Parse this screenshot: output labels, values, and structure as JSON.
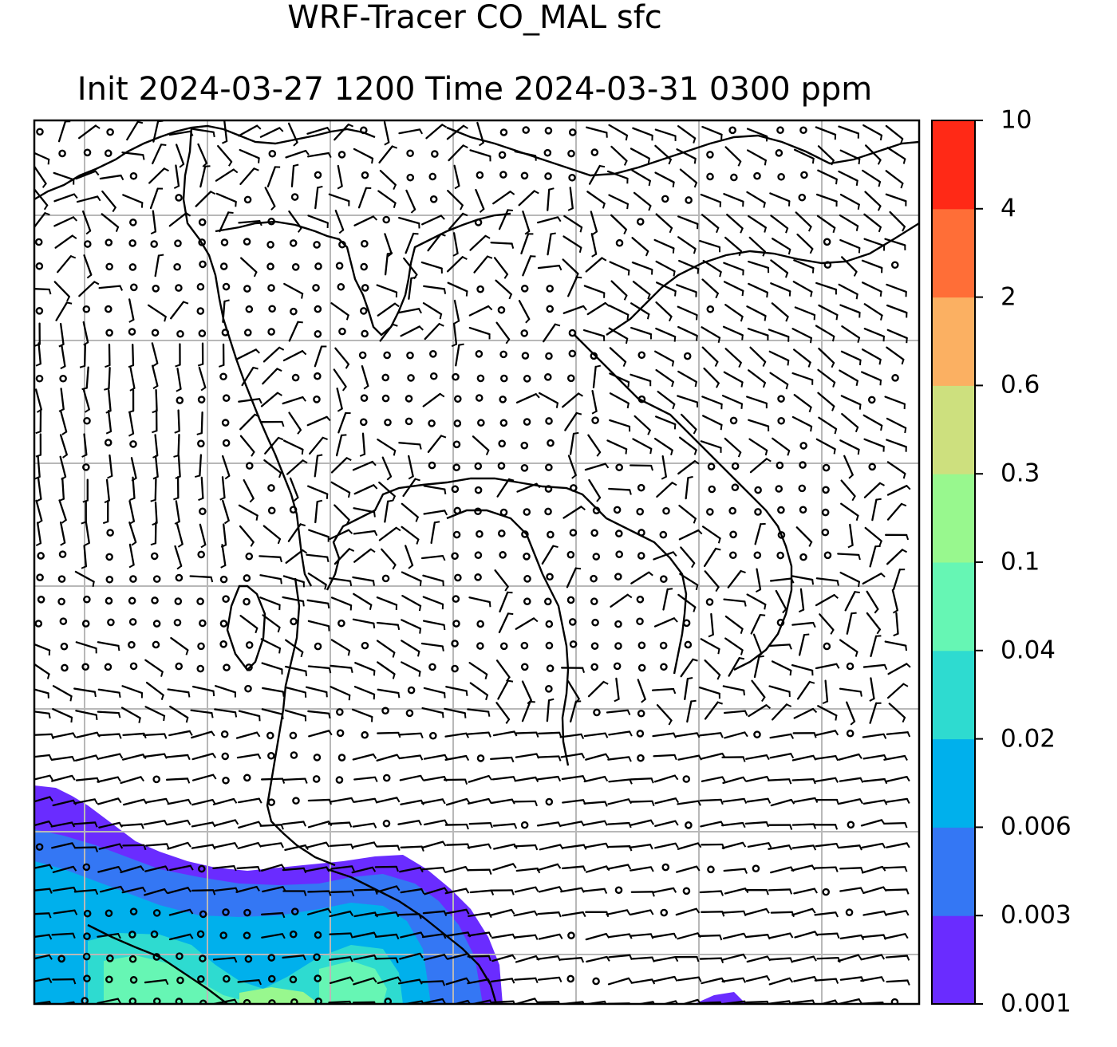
{
  "title": {
    "line1": "WRF-Tracer CO_MAL sfc",
    "line2": "Init 2024-03-27 1200 Time 2024-03-31 0300 ppm"
  },
  "colorbar": {
    "levels": [
      "0.001",
      "0.003",
      "0.006",
      "0.02",
      "0.04",
      "0.1",
      "0.3",
      "0.6",
      "2",
      "4",
      "10"
    ],
    "colors": [
      "#6a2cff",
      "#3477f4",
      "#00b0ec",
      "#2edbd0",
      "#66f6b4",
      "#98f88e",
      "#cde07e",
      "#fbb062",
      "#ff6e37",
      "#ff2916"
    ]
  }
}
